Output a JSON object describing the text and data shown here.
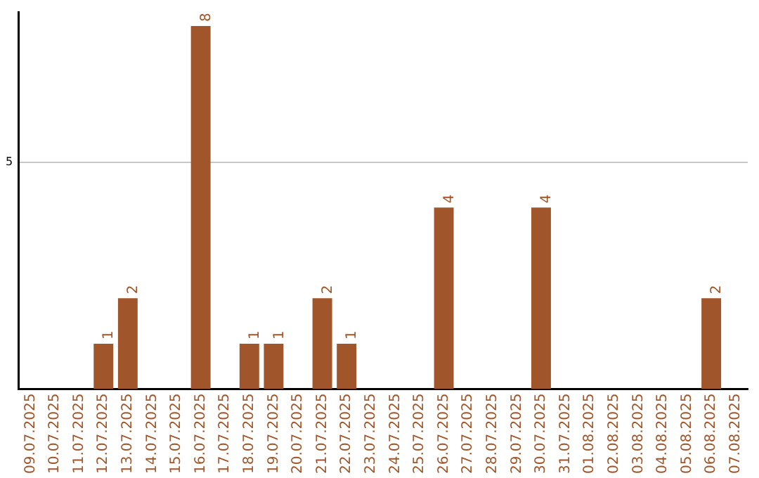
{
  "chart_data": {
    "type": "bar",
    "categories": [
      "09.07.2025",
      "10.07.2025",
      "11.07.2025",
      "12.07.2025",
      "13.07.2025",
      "14.07.2025",
      "15.07.2025",
      "16.07.2025",
      "17.07.2025",
      "18.07.2025",
      "19.07.2025",
      "20.07.2025",
      "21.07.2025",
      "22.07.2025",
      "23.07.2025",
      "24.07.2025",
      "25.07.2025",
      "26.07.2025",
      "27.07.2025",
      "28.07.2025",
      "29.07.2025",
      "30.07.2025",
      "31.07.2025",
      "01.08.2025",
      "02.08.2025",
      "03.08.2025",
      "04.08.2025",
      "05.08.2025",
      "06.08.2025",
      "07.08.2025"
    ],
    "values": [
      0,
      0,
      0,
      1,
      2,
      0,
      0,
      8,
      0,
      1,
      1,
      0,
      2,
      1,
      0,
      0,
      0,
      4,
      0,
      0,
      0,
      4,
      0,
      0,
      0,
      0,
      0,
      0,
      2,
      0
    ],
    "value_labels": [
      null,
      null,
      null,
      "1",
      "2",
      null,
      null,
      "8",
      null,
      "1",
      "1",
      null,
      "2",
      "1",
      null,
      null,
      null,
      "4",
      null,
      null,
      null,
      "4",
      null,
      null,
      null,
      null,
      null,
      null,
      "2",
      null
    ],
    "color": "#a0562a",
    "ylim": [
      0,
      8.3
    ],
    "yticks": [
      5
    ],
    "grid": "y",
    "legend": false
  }
}
